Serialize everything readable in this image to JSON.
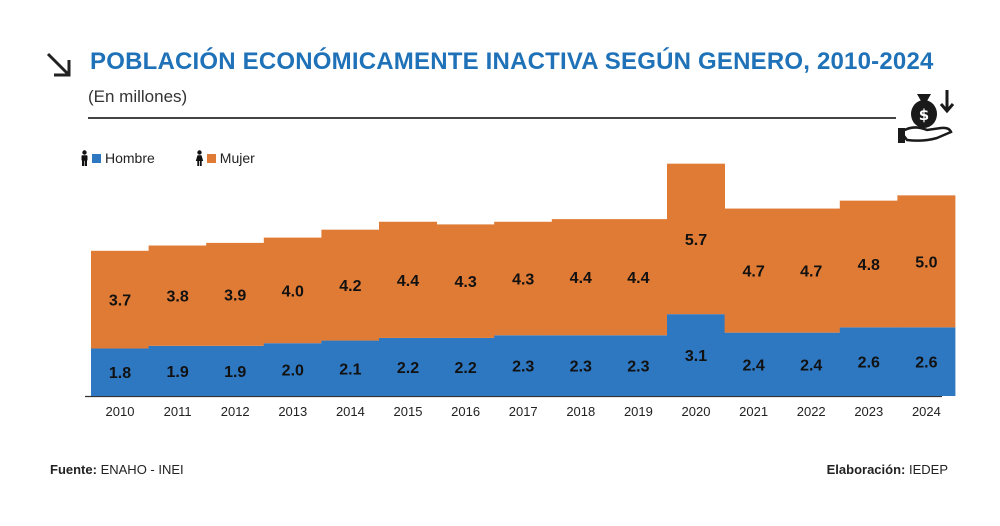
{
  "header": {
    "title": "POBLACIÓN ECONÓMICAMENTE INACTIVA SEGÚN GENERO, 2010-2024",
    "subtitle": "(En millones)"
  },
  "legend": {
    "hombre_label": "Hombre",
    "mujer_label": "Mujer"
  },
  "colors": {
    "hombre": "#2e78c2",
    "mujer": "#e07b35",
    "title": "#1f72b8"
  },
  "icons": {
    "title_arrow": "arrow-down-right-icon",
    "header_badge": "money-bag-hand-icon",
    "legend_male": "male-person-icon",
    "legend_female": "female-person-icon"
  },
  "footer": {
    "source_label": "Fuente:",
    "source_value": "ENAHO - INEI",
    "credit_label": "Elaboración:",
    "credit_value": "IEDEP"
  },
  "chart_data": {
    "type": "bar",
    "stacked": true,
    "categories": [
      "2010",
      "2011",
      "2012",
      "2013",
      "2014",
      "2015",
      "2016",
      "2017",
      "2018",
      "2019",
      "2020",
      "2021",
      "2022",
      "2023",
      "2024"
    ],
    "series": [
      {
        "name": "Hombre",
        "values": [
          1.8,
          1.9,
          1.9,
          2.0,
          2.1,
          2.2,
          2.2,
          2.3,
          2.3,
          2.3,
          3.1,
          2.4,
          2.4,
          2.6,
          2.6
        ]
      },
      {
        "name": "Mujer",
        "values": [
          3.7,
          3.8,
          3.9,
          4.0,
          4.2,
          4.4,
          4.3,
          4.3,
          4.4,
          4.4,
          5.7,
          4.7,
          4.7,
          4.8,
          5.0
        ]
      }
    ],
    "title": "POBLACIÓN ECONÓMICAMENTE INACTIVA SEGÚN GENERO, 2010-2024",
    "subtitle": "(En millones)",
    "xlabel": "",
    "ylabel": "",
    "ylim": [
      0,
      9
    ],
    "grid": false,
    "legend_position": "top-left",
    "data_labels": true
  }
}
